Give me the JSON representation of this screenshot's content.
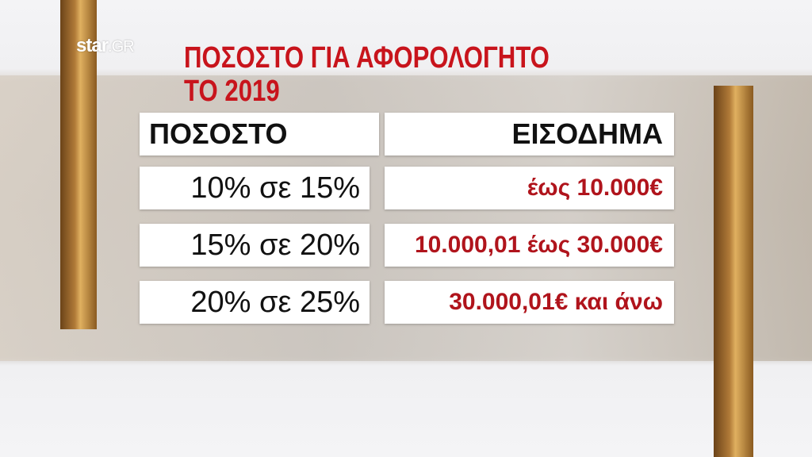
{
  "logo": {
    "brand": "star",
    "suffix": ".GR"
  },
  "title": {
    "line1": "ΠΟΣΟΣΤΟ ΓΙΑ ΑΦΟΡΟΛΟΓΗΤΟ",
    "line2": "ΤΟ 2019"
  },
  "table": {
    "headers": [
      "ΠΟΣΟΣΤΟ",
      "ΕΙΣΟΔΗΜΑ"
    ],
    "rows": [
      {
        "rate": "10% σε 15%",
        "income": "έως 10.000€"
      },
      {
        "rate": "15% σε 20%",
        "income": "10.000,01 έως 30.000€"
      },
      {
        "rate": "20% σε 25%",
        "income": "30.000,01€ και άνω"
      }
    ]
  },
  "colors": {
    "title": "#c8141c",
    "income": "#b0141c"
  }
}
